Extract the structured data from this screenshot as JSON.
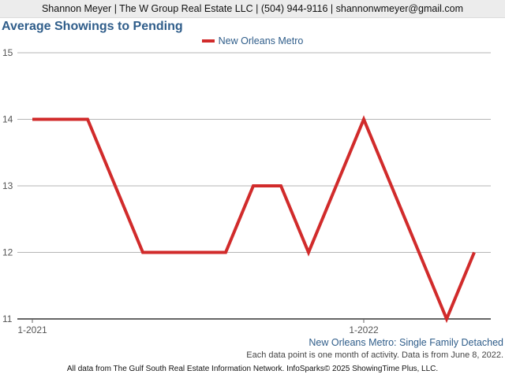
{
  "header": {
    "contact": "Shannon Meyer | The W Group Real Estate LLC | (504) 944-9116 | shannonwmeyer@gmail.com"
  },
  "chart_data": {
    "type": "line",
    "title": "Average Showings to Pending",
    "x": [
      "2021-01",
      "2021-02",
      "2021-03",
      "2021-04",
      "2021-05",
      "2021-06",
      "2021-07",
      "2021-08",
      "2021-09",
      "2021-10",
      "2021-11",
      "2021-12",
      "2022-01",
      "2022-02",
      "2022-03",
      "2022-04",
      "2022-05"
    ],
    "x_tick_labels": [
      {
        "label": "1-2021",
        "x": "2021-01"
      },
      {
        "label": "1-2022",
        "x": "2022-01"
      }
    ],
    "y_ticks": [
      11,
      12,
      13,
      14,
      15
    ],
    "ylim": [
      11,
      15
    ],
    "grid": true,
    "legend_placement": "top-center",
    "series": [
      {
        "name": "New Orleans Metro",
        "color": "#d12b2b",
        "values": [
          14,
          14,
          14,
          13,
          12,
          12,
          12,
          12,
          13,
          13,
          12,
          13,
          14,
          13,
          12,
          11,
          12
        ]
      }
    ]
  },
  "subtitle": "New Orleans Metro: Single Family Detached",
  "note": "Each data point is one month of activity. Data is from June 8, 2022.",
  "footer": "All data from The Gulf South Real Estate Information Network. InfoSparks© 2025 ShowingTime Plus, LLC."
}
